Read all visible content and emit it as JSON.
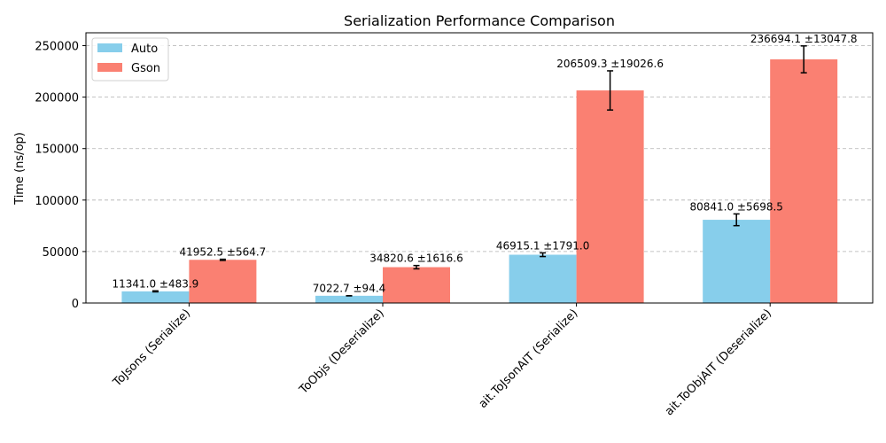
{
  "chart_data": {
    "type": "bar",
    "title": "Serialization Performance Comparison",
    "xlabel": "",
    "ylabel": "Time (ns/op)",
    "ylim": [
      0,
      262500
    ],
    "yticks": [
      0,
      50000,
      100000,
      150000,
      200000,
      250000
    ],
    "grid": "y-dashed",
    "legend_position": "top-left",
    "categories": [
      "ToJsons (Serialize)",
      "ToObjs (Deserialize)",
      "ait.ToJsonAIT (Serialize)",
      "ait.ToObjAIT (Deserialize)"
    ],
    "series": [
      {
        "name": "Auto",
        "color": "#87ceeb",
        "values": [
          11341.0,
          7022.7,
          46915.1,
          80841.0
        ],
        "errors": [
          483.9,
          94.4,
          1791.0,
          5698.5
        ],
        "labels": [
          "11341.0 ±483.9",
          "7022.7 ±94.4",
          "46915.1 ±1791.0",
          "80841.0 ±5698.5"
        ]
      },
      {
        "name": "Gson",
        "color": "#fa8072",
        "values": [
          41952.5,
          34820.6,
          206509.3,
          236694.1
        ],
        "errors": [
          564.7,
          1616.6,
          19026.6,
          13047.8
        ],
        "labels": [
          "41952.5 ±564.7",
          "34820.6 ±1616.6",
          "206509.3 ±19026.6",
          "236694.1 ±13047.8"
        ]
      }
    ]
  }
}
